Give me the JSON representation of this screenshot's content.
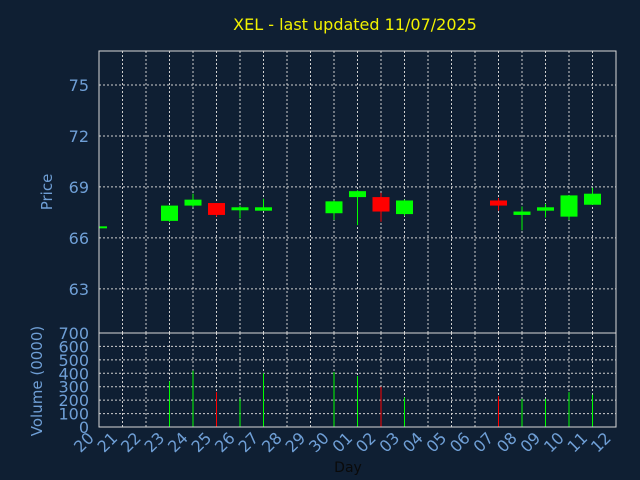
{
  "chart_data": {
    "type": "candlestick",
    "title": "XEL - last updated 11/07/2025",
    "xlabel": "Day",
    "price_ylabel": "Price",
    "volume_ylabel": "Volume (0000)",
    "x_ticks": [
      "20",
      "21",
      "22",
      "23",
      "24",
      "25",
      "26",
      "27",
      "28",
      "29",
      "30",
      "01",
      "02",
      "03",
      "04",
      "05",
      "06",
      "07",
      "08",
      "09",
      "10",
      "11",
      "12"
    ],
    "price_yticks": [
      63,
      66,
      69,
      72,
      75
    ],
    "price_ylim": [
      60.4,
      77.0
    ],
    "volume_yticks": [
      0,
      100,
      200,
      300,
      400,
      500,
      600,
      700
    ],
    "volume_ylim": [
      0,
      700
    ],
    "grid": true,
    "colors": {
      "up": "#00ff00",
      "down": "#ff0000",
      "background": "#0f1f33",
      "title": "#f2f200",
      "ticks": "#6f9fd6"
    },
    "candles": [
      {
        "x": 0,
        "open": 66.62,
        "close": 66.62,
        "high": 66.62,
        "low": 66.62,
        "volume": 0
      },
      {
        "x": 3,
        "open": 67.0,
        "close": 67.9,
        "high": 67.9,
        "low": 66.95,
        "volume": 340
      },
      {
        "x": 4,
        "open": 67.9,
        "close": 68.25,
        "high": 68.6,
        "low": 67.8,
        "volume": 420
      },
      {
        "x": 5,
        "open": 68.05,
        "close": 67.35,
        "high": 68.05,
        "low": 67.25,
        "volume": 260
      },
      {
        "x": 6,
        "open": 67.7,
        "close": 67.8,
        "high": 67.9,
        "low": 67.15,
        "volume": 210
      },
      {
        "x": 7,
        "open": 67.6,
        "close": 67.8,
        "high": 68.3,
        "low": 67.6,
        "volume": 400
      },
      {
        "x": 10,
        "open": 67.45,
        "close": 68.15,
        "high": 68.2,
        "low": 67.05,
        "volume": 410
      },
      {
        "x": 11,
        "open": 68.4,
        "close": 68.75,
        "high": 68.8,
        "low": 66.75,
        "volume": 380
      },
      {
        "x": 12,
        "open": 68.4,
        "close": 67.55,
        "high": 68.65,
        "low": 66.95,
        "volume": 300
      },
      {
        "x": 13,
        "open": 67.4,
        "close": 68.2,
        "high": 68.25,
        "low": 67.3,
        "volume": 220
      },
      {
        "x": 17,
        "open": 68.2,
        "close": 67.9,
        "high": 68.35,
        "low": 67.6,
        "volume": 230
      },
      {
        "x": 18,
        "open": 67.35,
        "close": 67.55,
        "high": 67.85,
        "low": 66.45,
        "volume": 210
      },
      {
        "x": 19,
        "open": 67.6,
        "close": 67.8,
        "high": 68.0,
        "low": 67.2,
        "volume": 210
      },
      {
        "x": 20,
        "open": 67.25,
        "close": 68.5,
        "high": 68.5,
        "low": 67.05,
        "volume": 260
      },
      {
        "x": 21,
        "open": 67.95,
        "close": 68.6,
        "high": 68.95,
        "low": 67.95,
        "volume": 240
      }
    ]
  }
}
